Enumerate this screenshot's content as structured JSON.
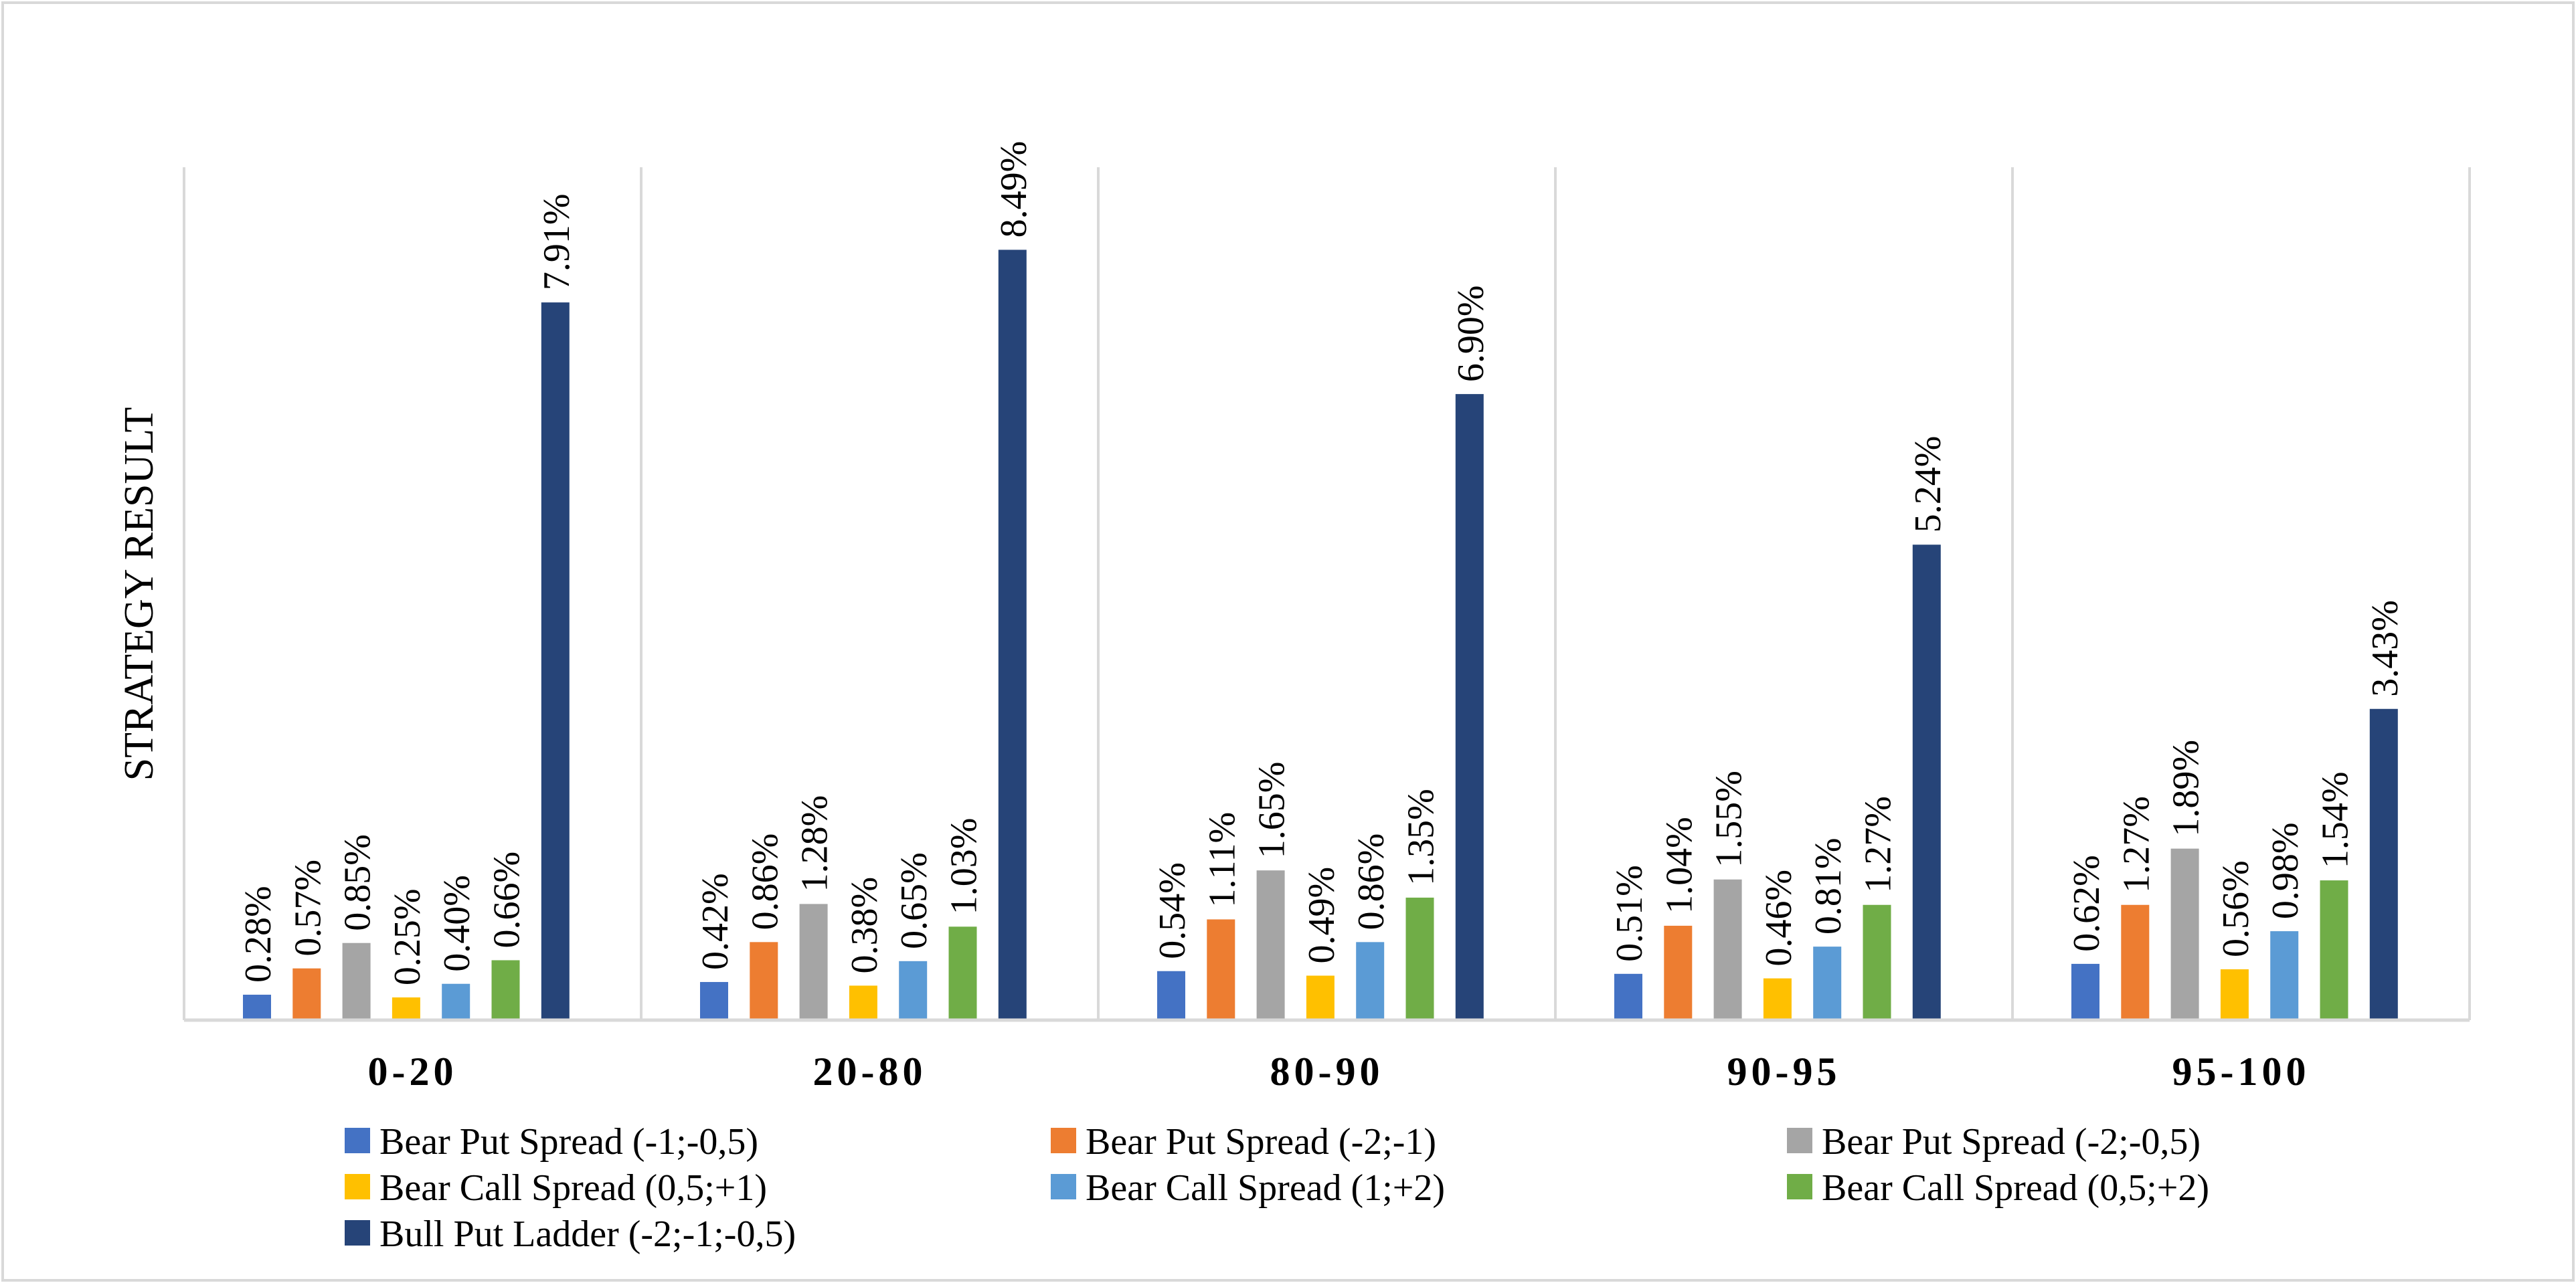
{
  "chart_data": {
    "type": "bar",
    "title": "",
    "xlabel": "",
    "ylabel": "STRATEGY RESULT",
    "ylim": [
      0,
      9.4
    ],
    "grid": false,
    "legend_position": "bottom",
    "categories": [
      "0-20",
      "20-80",
      "80-90",
      "90-95",
      "95-100"
    ],
    "series": [
      {
        "name": "Bear Put Spread (-1;-0,5)",
        "color": "#4472C4",
        "values": [
          0.28,
          0.42,
          0.54,
          0.51,
          0.62
        ],
        "labels": [
          "0.28%",
          "0.42%",
          "0.54%",
          "0.51%",
          "0.62%"
        ]
      },
      {
        "name": "Bear Put Spread (-2;-1)",
        "color": "#ED7D31",
        "values": [
          0.57,
          0.86,
          1.11,
          1.04,
          1.27
        ],
        "labels": [
          "0.57%",
          "0.86%",
          "1.11%",
          "1.04%",
          "1.27%"
        ]
      },
      {
        "name": "Bear Put Spread (-2;-0,5)",
        "color": "#A5A5A5",
        "values": [
          0.85,
          1.28,
          1.65,
          1.55,
          1.89
        ],
        "labels": [
          "0.85%",
          "1.28%",
          "1.65%",
          "1.55%",
          "1.89%"
        ]
      },
      {
        "name": "Bear Call Spread (0,5;+1)",
        "color": "#FFC000",
        "values": [
          0.25,
          0.38,
          0.49,
          0.46,
          0.56
        ],
        "labels": [
          "0.25%",
          "0.38%",
          "0.49%",
          "0.46%",
          "0.56%"
        ]
      },
      {
        "name": "Bear Call Spread (1;+2)",
        "color": "#5B9BD5",
        "values": [
          0.4,
          0.65,
          0.86,
          0.81,
          0.98
        ],
        "labels": [
          "0.40%",
          "0.65%",
          "0.86%",
          "0.81%",
          "0.98%"
        ]
      },
      {
        "name": "Bear Call Spread (0,5;+2)",
        "color": "#70AD47",
        "values": [
          0.66,
          1.03,
          1.35,
          1.27,
          1.54
        ],
        "labels": [
          "0.66%",
          "1.03%",
          "1.35%",
          "1.27%",
          "1.54%"
        ]
      },
      {
        "name": "Bull Put Ladder (-2;-1;-0,5)",
        "color": "#264478",
        "values": [
          7.91,
          8.49,
          6.9,
          5.24,
          3.43
        ],
        "labels": [
          "7.91%",
          "8.49%",
          "6.90%",
          "5.24%",
          "3.43%"
        ]
      }
    ]
  },
  "colors": {
    "axis": "#D9D9D9",
    "border": "#D9D9D9",
    "text": "#000000"
  }
}
